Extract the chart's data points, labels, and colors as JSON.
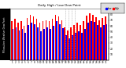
{
  "title": "Daily High / Low Dew Point",
  "left_label": "Milwaukee Weather Dew Point",
  "days": [
    1,
    2,
    3,
    4,
    5,
    6,
    7,
    8,
    9,
    10,
    11,
    12,
    13,
    14,
    15,
    16,
    17,
    18,
    19,
    20,
    21,
    22,
    23,
    24,
    25,
    26,
    27,
    28,
    29,
    30,
    31
  ],
  "highs": [
    68,
    72,
    65,
    68,
    60,
    74,
    79,
    76,
    72,
    65,
    68,
    70,
    68,
    72,
    80,
    76,
    70,
    58,
    52,
    58,
    62,
    65,
    62,
    68,
    78,
    82,
    80,
    75,
    70,
    74,
    76
  ],
  "lows": [
    55,
    58,
    52,
    54,
    48,
    62,
    66,
    63,
    58,
    50,
    55,
    57,
    54,
    60,
    68,
    63,
    56,
    44,
    38,
    44,
    48,
    50,
    48,
    55,
    65,
    68,
    67,
    62,
    57,
    61,
    63
  ],
  "high_color": "#ff0000",
  "low_color": "#0000ff",
  "bg_color": "#ffffff",
  "plot_bg": "#ffffff",
  "dashed_cols": [
    18,
    19,
    20,
    21
  ],
  "ylim_min": 0,
  "ylim_max": 90,
  "ytick_vals": [
    10,
    20,
    30,
    40,
    50,
    60,
    70,
    80
  ],
  "ytick_labels": [
    "10",
    "20",
    "30",
    "40",
    "50",
    "60",
    "70",
    "80"
  ],
  "legend_labels": [
    "Low",
    "High"
  ],
  "legend_colors": [
    "#0000ff",
    "#ff0000"
  ]
}
